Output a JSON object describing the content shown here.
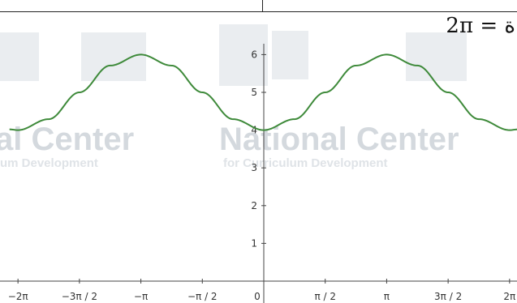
{
  "header": {
    "period_text": "2π = ة"
  },
  "watermark": {
    "title_left": "al Center",
    "title_right": "National Center",
    "subtitle_left": "um Development",
    "subtitle_right": "for Curriculum Development"
  },
  "chart_data": {
    "type": "line",
    "function": "y = 5 - cos(x)",
    "xlim": [
      -6.75,
      6.75
    ],
    "ylim": [
      -0.5,
      6.6
    ],
    "x_ticks": [
      {
        "value": -6.2832,
        "label": "−2π"
      },
      {
        "value": -4.7124,
        "label": "−3π / 2"
      },
      {
        "value": -3.1416,
        "label": "−π"
      },
      {
        "value": -1.5708,
        "label": "−π / 2"
      },
      {
        "value": 0,
        "label": "0"
      },
      {
        "value": 1.5708,
        "label": "π / 2"
      },
      {
        "value": 3.1416,
        "label": "π"
      },
      {
        "value": 4.7124,
        "label": "3π / 2"
      },
      {
        "value": 6.2832,
        "label": "2π"
      }
    ],
    "y_ticks": [
      {
        "value": 1,
        "label": "1"
      },
      {
        "value": 2,
        "label": "2"
      },
      {
        "value": 3,
        "label": "3"
      },
      {
        "value": 4,
        "label": "4"
      },
      {
        "value": 5,
        "label": "5"
      },
      {
        "value": 6,
        "label": "6"
      }
    ],
    "series": [
      {
        "color": "#3e8a3a",
        "x": [
          -6.5,
          -6.2832,
          -5.4978,
          -4.7124,
          -3.927,
          -3.1416,
          -2.3562,
          -1.5708,
          -0.7854,
          0,
          0.7854,
          1.5708,
          2.3562,
          3.1416,
          3.927,
          4.7124,
          5.4978,
          6.2832,
          6.5
        ],
        "y": [
          4.02,
          4.0,
          4.29,
          5.0,
          5.71,
          6.0,
          5.71,
          5.0,
          4.29,
          4.0,
          4.29,
          5.0,
          5.71,
          6.0,
          5.71,
          5.0,
          4.29,
          4.0,
          4.02
        ]
      }
    ]
  }
}
